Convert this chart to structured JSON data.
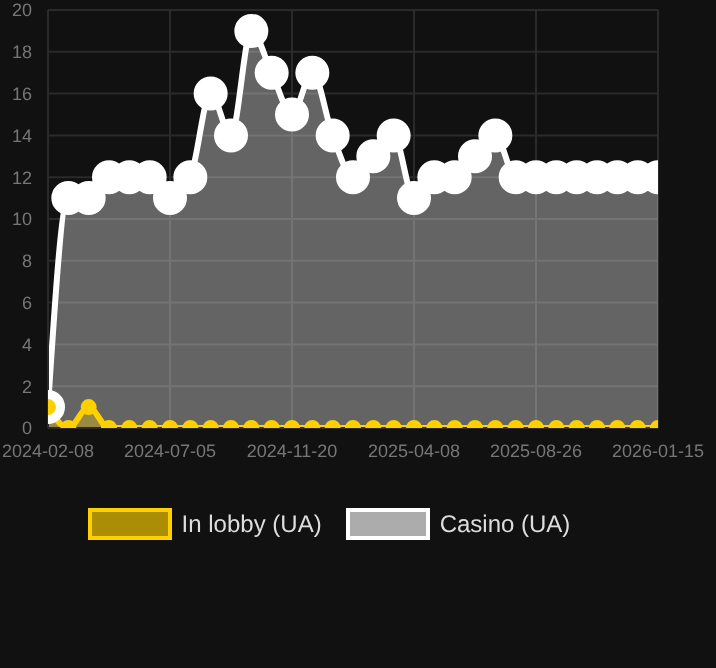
{
  "chart_data": {
    "type": "area",
    "categories": [
      "2024-02-08",
      null,
      null,
      null,
      null,
      null,
      "2024-07-05",
      null,
      null,
      null,
      null,
      null,
      "2024-11-20",
      null,
      null,
      null,
      null,
      null,
      "2025-04-08",
      null,
      null,
      null,
      null,
      null,
      "2025-08-26",
      null,
      null,
      null,
      null,
      null,
      "2026-01-15"
    ],
    "series": [
      {
        "name": "In lobby (UA)",
        "color": "#ffd000",
        "values": [
          1,
          0,
          1,
          0,
          0,
          0,
          0,
          0,
          0,
          0,
          0,
          0,
          0,
          0,
          0,
          0,
          0,
          0,
          0,
          0,
          0,
          0,
          0,
          0,
          0,
          0,
          0,
          0,
          0,
          0,
          0
        ]
      },
      {
        "name": "Casino (UA)",
        "color": "#ffffff",
        "values": [
          1,
          11,
          11,
          12,
          12,
          12,
          11,
          12,
          16,
          14,
          19,
          17,
          15,
          17,
          14,
          12,
          13,
          14,
          11,
          12,
          12,
          13,
          14,
          12,
          12,
          12,
          12,
          12,
          12,
          12,
          12
        ]
      }
    ],
    "ylim": [
      0,
      20
    ],
    "yticks": [
      0,
      2,
      4,
      6,
      8,
      10,
      12,
      14,
      16,
      18,
      20
    ],
    "grid": true,
    "legend": "bottom",
    "marker": "circle"
  }
}
